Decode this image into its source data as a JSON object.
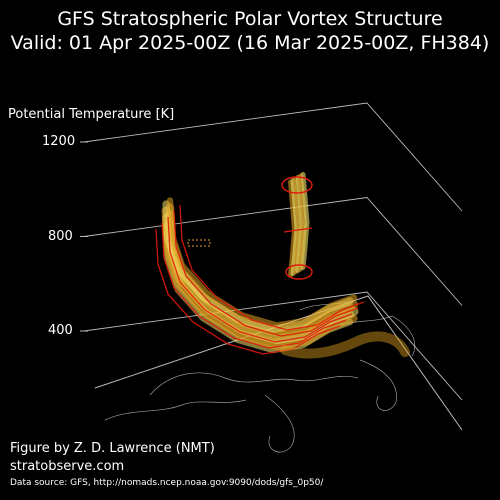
{
  "chart_data": {
    "type": "3d-isosurface",
    "title": "GFS Stratospheric Polar Vortex Structure",
    "subtitle": "Valid: 01 Apr 2025-00Z  (16 Mar 2025-00Z, FH384)",
    "zlabel": "Potential Temperature [K]",
    "z_ticks": [
      400,
      800,
      1200
    ],
    "zlim": [
      400,
      1200
    ],
    "grid": true,
    "colors": {
      "background": "#000000",
      "text": "#ffffff",
      "grid": "#bbbbbb",
      "coastline": "#cfcfcf",
      "vortex_fill": "#e0a020",
      "vortex_highlight": "#f4e26a",
      "vortex_edge": "#e01a0a"
    }
  },
  "credits": {
    "author": "Figure by Z. D. Lawrence (NMT)",
    "site": "stratobserve.com",
    "source": "Data source: GFS, http://nomads.ncep.noaa.gov:9090/dods/gfs_0p50/"
  }
}
